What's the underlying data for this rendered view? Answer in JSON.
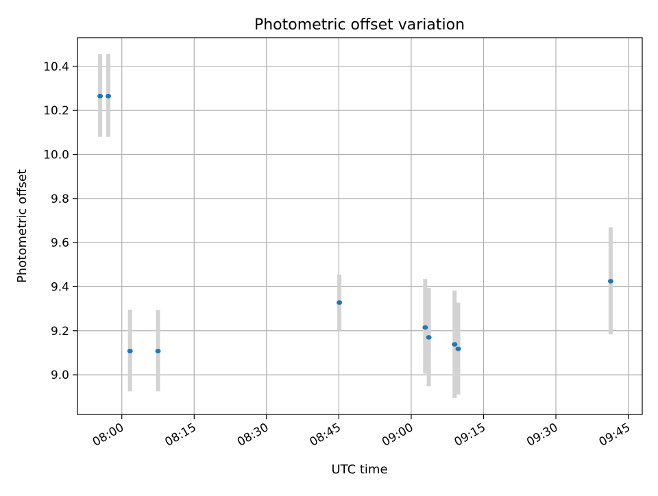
{
  "chart_data": {
    "type": "scatter",
    "title": "Photometric offset variation",
    "xlabel": "UTC time",
    "ylabel": "Photometric offset",
    "x_ticks": [
      "08:00",
      "08:15",
      "08:30",
      "08:45",
      "09:00",
      "09:15",
      "09:30",
      "09:45"
    ],
    "x_tick_minutes": [
      480,
      495,
      510,
      525,
      540,
      555,
      570,
      585
    ],
    "xlim_minutes": [
      470.8,
      587.9
    ],
    "y_ticks": [
      "9.0",
      "9.2",
      "9.4",
      "9.6",
      "9.8",
      "10.0",
      "10.2",
      "10.4"
    ],
    "y_tick_values": [
      9.0,
      9.2,
      9.4,
      9.6,
      9.8,
      10.0,
      10.2,
      10.4
    ],
    "ylim": [
      8.82,
      10.53
    ],
    "grid": true,
    "point_color": "#1f77b4",
    "errorbar_color": "#d3d3d3",
    "points": [
      {
        "time": "07:55:30",
        "minutes": 475.5,
        "y": 10.265,
        "err_low": 10.08,
        "err_high": 10.455
      },
      {
        "time": "07:57:10",
        "minutes": 477.2,
        "y": 10.265,
        "err_low": 10.08,
        "err_high": 10.455
      },
      {
        "time": "08:01:40",
        "minutes": 481.7,
        "y": 9.108,
        "err_low": 8.925,
        "err_high": 9.295
      },
      {
        "time": "08:07:30",
        "minutes": 487.5,
        "y": 9.108,
        "err_low": 8.925,
        "err_high": 9.295
      },
      {
        "time": "08:45:05",
        "minutes": 525.1,
        "y": 9.328,
        "err_low": 9.2,
        "err_high": 9.455
      },
      {
        "time": "09:02:55",
        "minutes": 542.9,
        "y": 9.215,
        "err_low": 9.005,
        "err_high": 9.435
      },
      {
        "time": "09:03:40",
        "minutes": 543.65,
        "y": 9.17,
        "err_low": 8.948,
        "err_high": 9.395
      },
      {
        "time": "09:09:00",
        "minutes": 549.0,
        "y": 9.138,
        "err_low": 8.895,
        "err_high": 9.382
      },
      {
        "time": "09:09:45",
        "minutes": 549.75,
        "y": 9.118,
        "err_low": 8.91,
        "err_high": 9.328
      },
      {
        "time": "09:41:20",
        "minutes": 581.35,
        "y": 9.425,
        "err_low": 9.183,
        "err_high": 9.67
      }
    ]
  }
}
